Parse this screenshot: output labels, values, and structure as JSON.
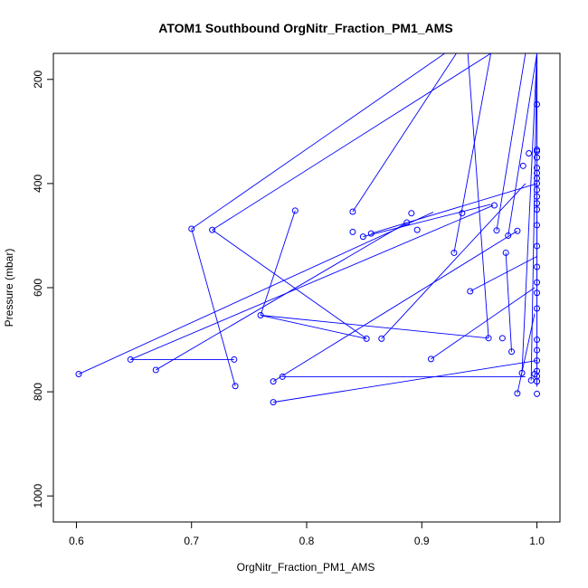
{
  "chart_data": {
    "type": "line",
    "title": "ATOM1 Southbound OrgNitr_Fraction_PM1_AMS",
    "xlabel": "OrgNitr_Fraction_PM1_AMS",
    "ylabel": "Pressure (mbar)",
    "xlim": [
      0.58,
      1.02
    ],
    "ylim": [
      1050,
      150
    ],
    "y_reversed": true,
    "x_ticks": [
      0.6,
      0.7,
      0.8,
      0.9,
      1.0
    ],
    "x_tick_labels": [
      "0.6",
      "0.7",
      "0.8",
      "0.9",
      "1.0"
    ],
    "y_ticks": [
      200,
      400,
      600,
      800,
      1000
    ],
    "y_tick_labels": [
      "200",
      "400",
      "600",
      "800",
      "1000"
    ],
    "grid": false,
    "series": [
      {
        "color": "#0000ff",
        "marker": "open-circle",
        "points": [
          [
            1.0,
            248
          ],
          [
            1.0,
            335
          ],
          [
            1.0,
            338
          ],
          [
            0.993,
            342
          ],
          [
            1.0,
            350
          ],
          [
            0.988,
            366
          ],
          [
            1.0,
            370
          ],
          [
            1.0,
            380
          ],
          [
            1.0,
            390
          ],
          [
            1.0,
            400
          ],
          [
            1.0,
            412
          ],
          [
            1.0,
            425
          ],
          [
            1.0,
            438
          ],
          [
            1.0,
            450
          ],
          [
            0.963,
            442
          ],
          [
            0.935,
            457
          ],
          [
            0.79,
            452
          ],
          [
            0.84,
            454
          ],
          [
            0.891,
            457
          ],
          [
            0.887,
            475
          ],
          [
            0.896,
            489
          ],
          [
            0.7,
            487
          ],
          [
            0.718,
            489
          ],
          [
            0.84,
            493
          ],
          [
            0.856,
            496
          ],
          [
            0.849,
            502
          ],
          [
            0.965,
            490
          ],
          [
            0.983,
            491
          ],
          [
            0.975,
            500
          ],
          [
            1.0,
            480
          ],
          [
            1.0,
            520
          ],
          [
            0.973,
            533
          ],
          [
            0.928,
            533
          ],
          [
            1.0,
            560
          ],
          [
            1.0,
            590
          ],
          [
            0.942,
            607
          ],
          [
            1.0,
            610
          ],
          [
            1.0,
            640
          ],
          [
            0.76,
            653
          ],
          [
            0.852,
            698
          ],
          [
            0.865,
            698
          ],
          [
            0.958,
            697
          ],
          [
            0.97,
            697
          ],
          [
            0.978,
            723
          ],
          [
            1.0,
            700
          ],
          [
            1.0,
            720
          ],
          [
            1.0,
            740
          ],
          [
            0.602,
            766
          ],
          [
            0.647,
            738
          ],
          [
            0.737,
            738
          ],
          [
            0.669,
            758
          ],
          [
            0.908,
            737
          ],
          [
            0.738,
            789
          ],
          [
            0.771,
            780
          ],
          [
            0.779,
            771
          ],
          [
            0.987,
            764
          ],
          [
            0.998,
            766
          ],
          [
            0.995,
            778
          ],
          [
            1.0,
            760
          ],
          [
            1.0,
            770
          ],
          [
            0.771,
            820
          ],
          [
            0.983,
            803
          ],
          [
            1.0,
            804
          ],
          [
            1.0,
            780
          ]
        ],
        "segments": [
          [
            [
              0.7,
              487
            ],
            [
              0.92,
              150
            ]
          ],
          [
            [
              0.718,
              489
            ],
            [
              0.96,
              150
            ]
          ],
          [
            [
              0.79,
              452
            ],
            [
              0.76,
              653
            ]
          ],
          [
            [
              0.84,
              454
            ],
            [
              0.93,
              150
            ]
          ],
          [
            [
              0.602,
              766
            ],
            [
              0.91,
              455
            ]
          ],
          [
            [
              0.647,
              738
            ],
            [
              0.962,
              442
            ]
          ],
          [
            [
              0.669,
              758
            ],
            [
              0.887,
              475
            ]
          ],
          [
            [
              0.737,
              738
            ],
            [
              0.647,
              738
            ]
          ],
          [
            [
              0.738,
              789
            ],
            [
              0.7,
              487
            ]
          ],
          [
            [
              0.76,
              653
            ],
            [
              0.852,
              698
            ]
          ],
          [
            [
              0.76,
              653
            ],
            [
              0.958,
              697
            ]
          ],
          [
            [
              0.771,
              780
            ],
            [
              0.983,
              491
            ]
          ],
          [
            [
              0.779,
              771
            ],
            [
              0.99,
              771
            ]
          ],
          [
            [
              0.771,
              820
            ],
            [
              1.0,
              740
            ]
          ],
          [
            [
              0.852,
              698
            ],
            [
              0.718,
              489
            ]
          ],
          [
            [
              0.865,
              698
            ],
            [
              0.99,
              400
            ]
          ],
          [
            [
              0.908,
              737
            ],
            [
              0.998,
              600
            ]
          ],
          [
            [
              0.856,
              496
            ],
            [
              1.0,
              400
            ]
          ],
          [
            [
              0.849,
              502
            ],
            [
              0.96,
              440
            ]
          ],
          [
            [
              0.928,
              533
            ],
            [
              0.96,
              150
            ]
          ],
          [
            [
              0.942,
              607
            ],
            [
              1.0,
              540
            ]
          ],
          [
            [
              0.958,
              697
            ],
            [
              0.94,
              150
            ]
          ],
          [
            [
              0.965,
              490
            ],
            [
              0.99,
              150
            ]
          ],
          [
            [
              0.975,
              500
            ],
            [
              1.0,
              150
            ]
          ],
          [
            [
              0.973,
              533
            ],
            [
              0.978,
              723
            ]
          ],
          [
            [
              0.987,
              764
            ],
            [
              1.0,
              150
            ]
          ],
          [
            [
              0.983,
              803
            ],
            [
              0.998,
              650
            ]
          ],
          [
            [
              0.995,
              778
            ],
            [
              1.0,
              150
            ]
          ]
        ]
      }
    ]
  }
}
